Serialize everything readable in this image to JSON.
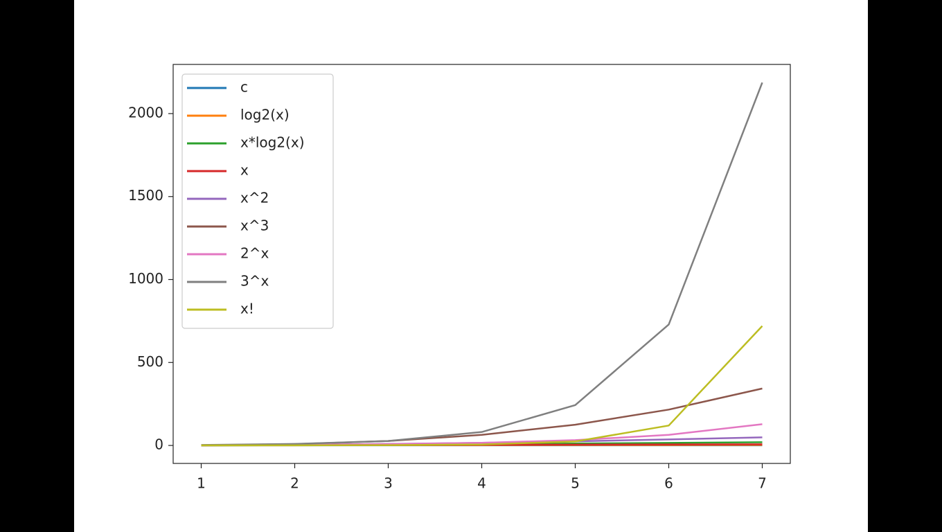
{
  "chart_data": {
    "type": "line",
    "x": [
      1,
      2,
      3,
      4,
      5,
      6,
      7
    ],
    "series": [
      {
        "name": "c",
        "color": "#1f77b4",
        "values": [
          1,
          1,
          1,
          1,
          1,
          1,
          1
        ]
      },
      {
        "name": "log2(x)",
        "color": "#ff7f0e",
        "values": [
          0,
          1,
          1.585,
          2,
          2.322,
          2.585,
          2.807
        ]
      },
      {
        "name": "x*log2(x)",
        "color": "#2ca02c",
        "values": [
          0,
          2,
          4.755,
          8,
          11.61,
          15.51,
          19.65
        ]
      },
      {
        "name": "x",
        "color": "#d62728",
        "values": [
          1,
          2,
          3,
          4,
          5,
          6,
          7
        ]
      },
      {
        "name": "x^2",
        "color": "#9467bd",
        "values": [
          1,
          4,
          9,
          16,
          25,
          36,
          49
        ]
      },
      {
        "name": "x^3",
        "color": "#8c564b",
        "values": [
          1,
          8,
          27,
          64,
          125,
          216,
          343
        ]
      },
      {
        "name": "2^x",
        "color": "#e377c2",
        "values": [
          2,
          4,
          8,
          16,
          32,
          64,
          128
        ]
      },
      {
        "name": "3^x",
        "color": "#7f7f7f",
        "values": [
          3,
          9,
          27,
          81,
          243,
          729,
          2187
        ]
      },
      {
        "name": "x!",
        "color": "#bcbd22",
        "values": [
          1,
          1,
          2,
          6,
          24,
          120,
          720
        ]
      }
    ],
    "xlim": [
      0.7,
      7.3
    ],
    "xticks": [
      1,
      2,
      3,
      4,
      5,
      6,
      7
    ],
    "ylim": [
      -108.3,
      2296.3
    ],
    "yticks": [
      0,
      500,
      1000,
      1500,
      2000
    ],
    "legend": "upper left"
  }
}
